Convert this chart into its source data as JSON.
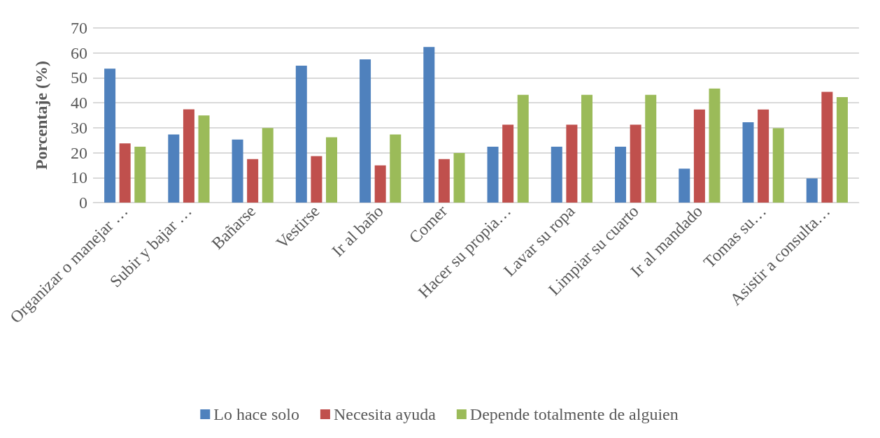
{
  "chart_data": {
    "type": "bar",
    "ylabel": "Porcentaje (%)",
    "categories": [
      "Organizar o manejar …",
      "Subir y bajar …",
      "Bañarse",
      "Vestirse",
      "Ir al baño",
      "Comer",
      "Hacer su propia…",
      "Lavar su ropa",
      "Limpiar su cuarto",
      "Ir al mandado",
      "Tomas su…",
      "Asistir a consulta…"
    ],
    "series": [
      {
        "name": "Lo hace solo",
        "color": "#4f81bd",
        "values": [
          53.7,
          27.3,
          25.3,
          54.9,
          57.4,
          62.4,
          22.4,
          22.4,
          22.4,
          13.6,
          32.2,
          9.7
        ]
      },
      {
        "name": "Necesita ayuda",
        "color": "#c0504d",
        "values": [
          23.7,
          37.4,
          17.4,
          18.6,
          14.9,
          17.4,
          31.2,
          31.2,
          31.2,
          37.3,
          37.3,
          44.4
        ]
      },
      {
        "name": "Depende totalmente de alguien",
        "color": "#9bbb59",
        "values": [
          22.4,
          34.9,
          29.9,
          26.2,
          27.3,
          19.9,
          43.2,
          43.2,
          43.2,
          45.7,
          29.8,
          42.3
        ]
      }
    ],
    "ylim": [
      0,
      70
    ],
    "yticks": [
      0,
      10,
      20,
      30,
      40,
      50,
      60,
      70
    ],
    "grid": "y",
    "legend": "bottom"
  }
}
